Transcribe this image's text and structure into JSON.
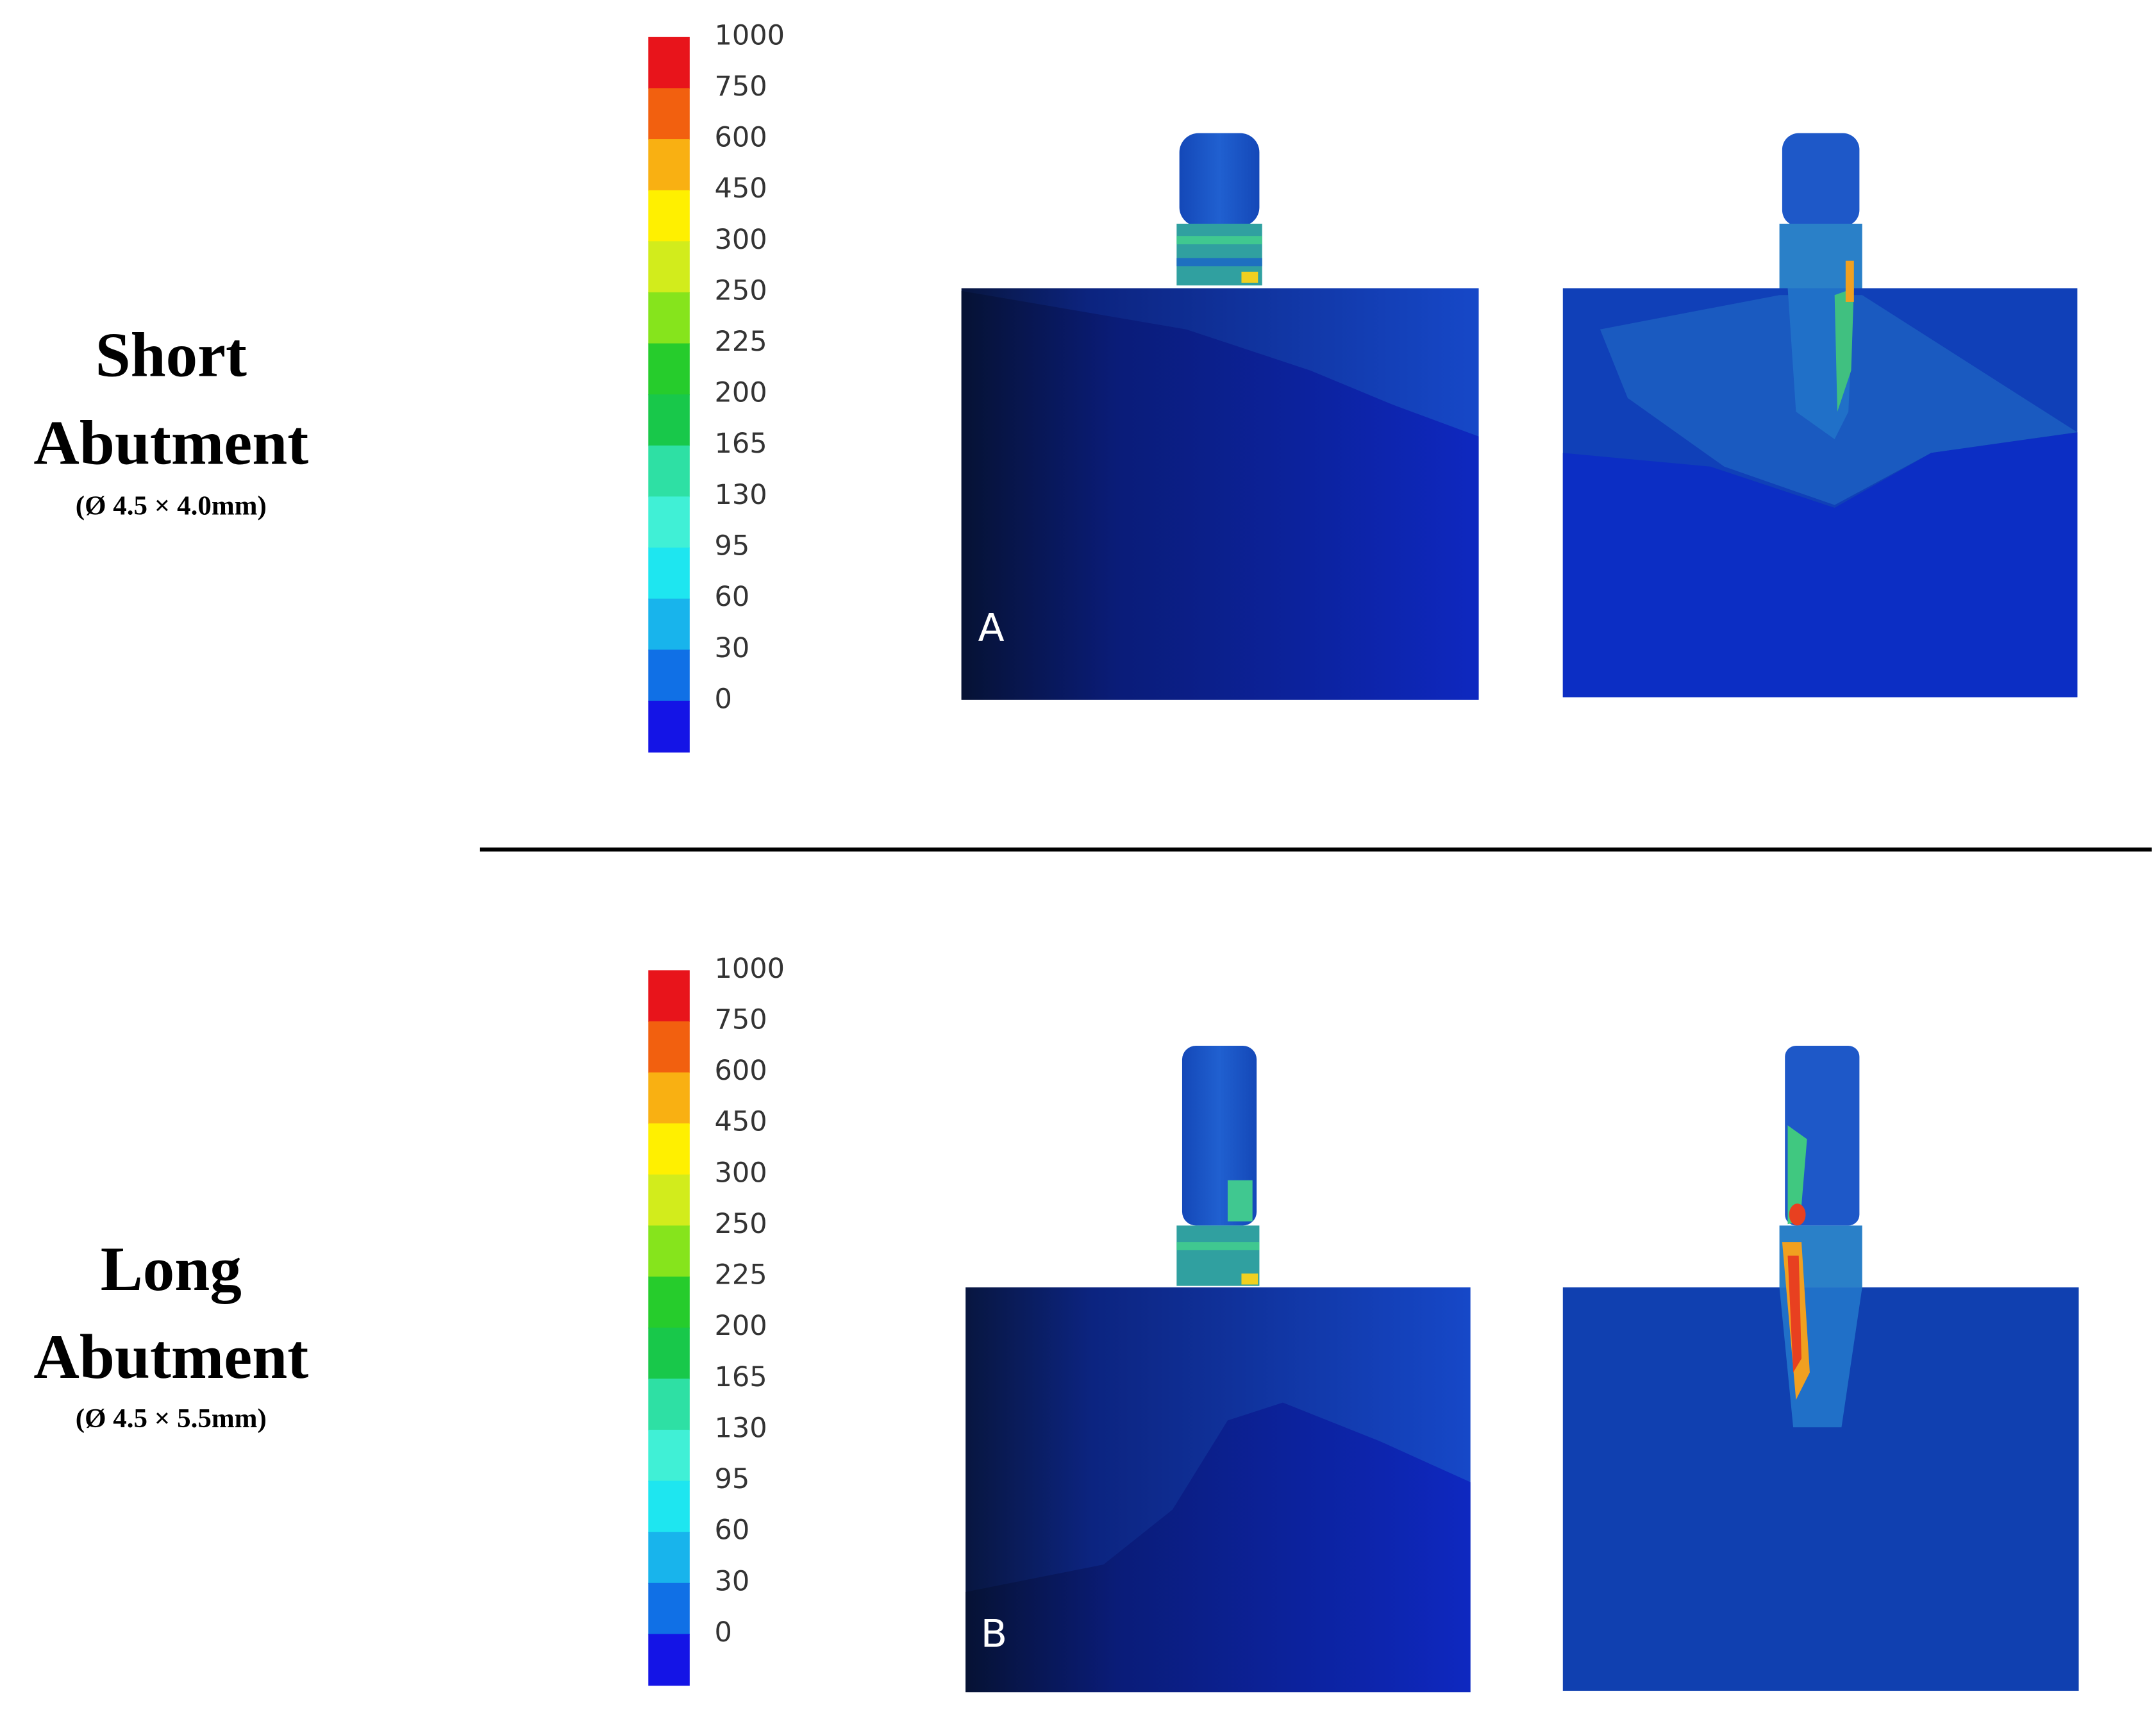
{
  "colorbar": {
    "labels": [
      1000,
      750,
      600,
      450,
      300,
      250,
      225,
      200,
      165,
      130,
      95,
      60,
      30,
      0
    ],
    "colors": [
      "#e8141b",
      "#f2600f",
      "#f9b012",
      "#fff000",
      "#d2ec1c",
      "#86e41c",
      "#26cc2c",
      "#18c84a",
      "#2ee0a4",
      "#40f0d6",
      "#1ee6f0",
      "#18b4ec",
      "#1070e6",
      "#1414e6"
    ]
  },
  "rows": [
    {
      "title": [
        "Short",
        "Abutment"
      ],
      "size": "(Ø 4.5 × 4.0mm)",
      "panel_label": "A"
    },
    {
      "title": [
        "Long",
        "Abutment"
      ],
      "size": "(Ø 4.5 × 5.5mm)",
      "panel_label": "B"
    }
  ]
}
